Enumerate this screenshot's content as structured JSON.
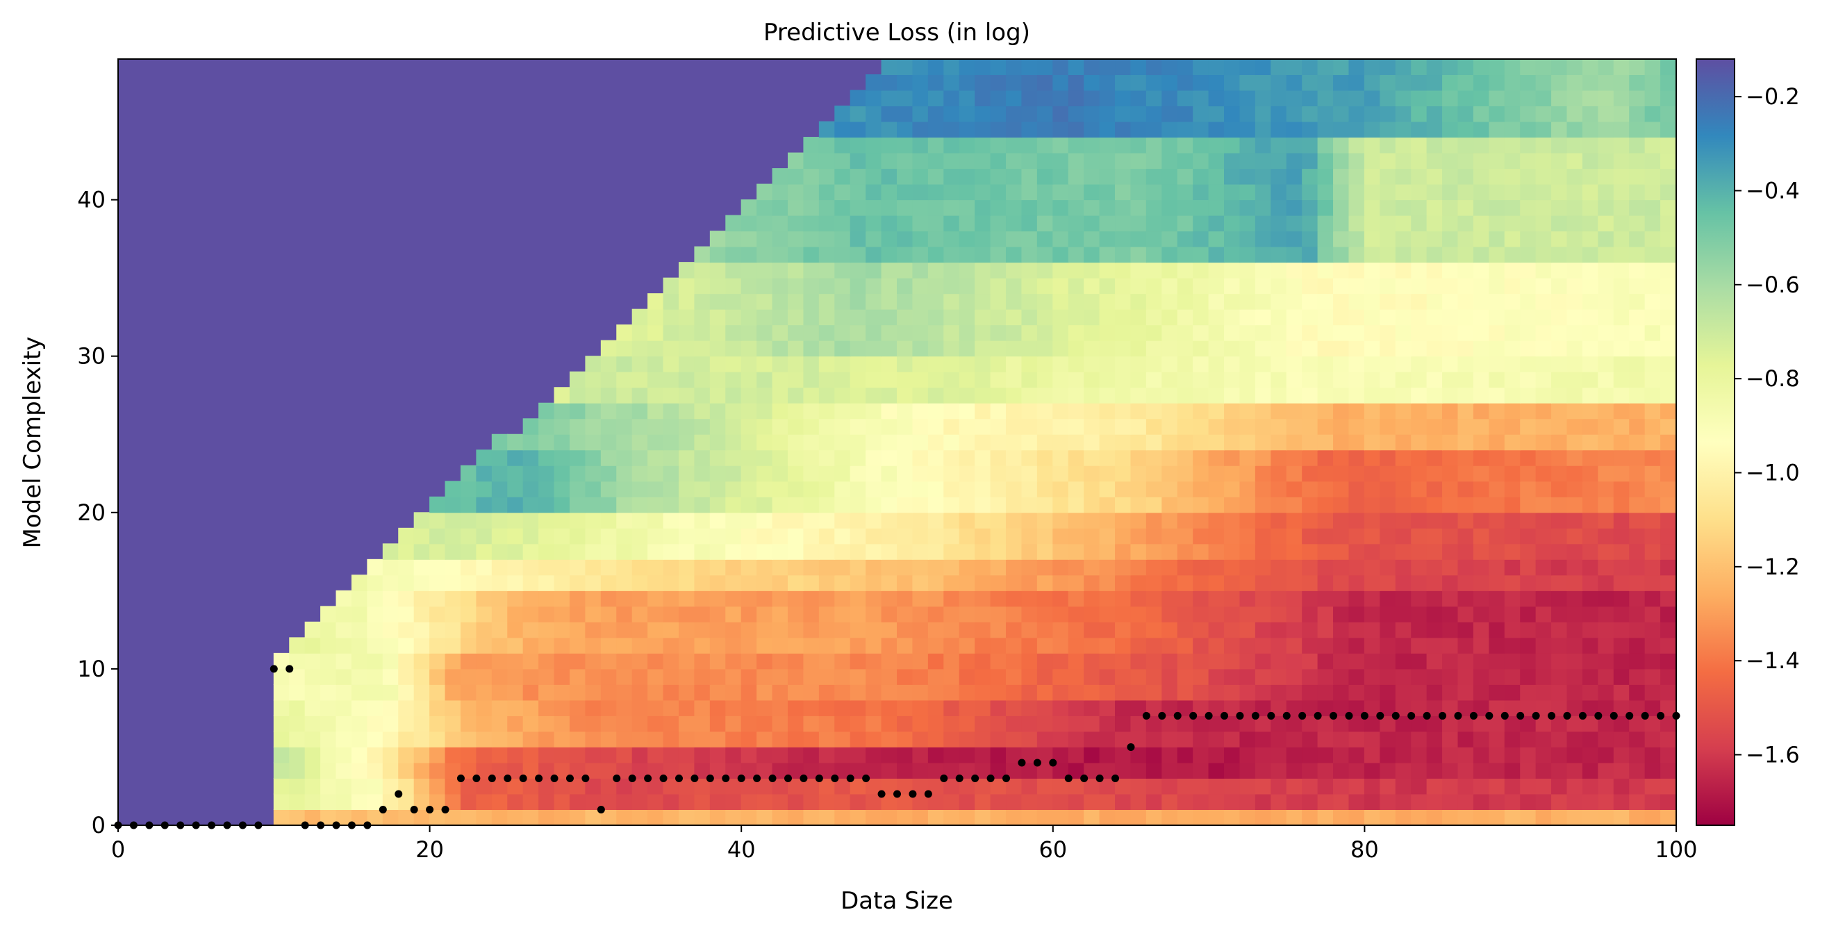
{
  "chart_data": {
    "type": "heatmap",
    "title": "Predictive Loss (in log)",
    "xlabel": "Data Size",
    "ylabel": "Model Complexity",
    "xlim": [
      0,
      100
    ],
    "ylim": [
      0,
      49
    ],
    "x_ticks": [
      0,
      20,
      40,
      60,
      80,
      100
    ],
    "y_ticks": [
      0,
      10,
      20,
      30,
      40
    ],
    "x_tick_labels": [
      "0",
      "20",
      "40",
      "60",
      "80",
      "100"
    ],
    "y_tick_labels": [
      "0",
      "10",
      "20",
      "30",
      "40"
    ],
    "colorbar": {
      "range": [
        -1.75,
        -0.12
      ],
      "ticks": [
        -0.2,
        -0.4,
        -0.6,
        -0.8,
        -1.0,
        -1.2,
        -1.4,
        -1.6
      ],
      "tick_labels": [
        "−0.2",
        "−0.4",
        "−0.6",
        "−0.8",
        "−1.0",
        "−1.2",
        "−1.4",
        "−1.6"
      ],
      "colormap": "Spectral",
      "stops": [
        "#9e0142",
        "#d53e4f",
        "#f46d43",
        "#fdae61",
        "#fee08b",
        "#ffffbf",
        "#e6f598",
        "#abdda4",
        "#66c2a5",
        "#3288bd",
        "#5e4fa2"
      ]
    },
    "masked_color": "#5e4fa2",
    "valid_region_note": "cells with complexity > data size shown in masked color",
    "heatmap_bands": [
      {
        "y_from": 0,
        "y_to": 1,
        "by_x": [
          [
            0,
            -1.2
          ],
          [
            40,
            -1.25
          ],
          [
            100,
            -1.25
          ]
        ]
      },
      {
        "y_from": 1,
        "y_to": 3,
        "by_x": [
          [
            10,
            -0.75
          ],
          [
            17,
            -0.95
          ],
          [
            22,
            -1.45
          ],
          [
            32,
            -1.55
          ],
          [
            48,
            -1.5
          ],
          [
            80,
            -1.6
          ],
          [
            100,
            -1.6
          ]
        ]
      },
      {
        "y_from": 3,
        "y_to": 5,
        "by_x": [
          [
            10,
            -0.65
          ],
          [
            17,
            -1.0
          ],
          [
            22,
            -1.45
          ],
          [
            32,
            -1.55
          ],
          [
            46,
            -1.65
          ],
          [
            66,
            -1.7
          ],
          [
            80,
            -1.65
          ],
          [
            100,
            -1.65
          ]
        ]
      },
      {
        "y_from": 5,
        "y_to": 8,
        "by_x": [
          [
            10,
            -0.8
          ],
          [
            17,
            -0.95
          ],
          [
            22,
            -1.2
          ],
          [
            30,
            -1.35
          ],
          [
            48,
            -1.4
          ],
          [
            66,
            -1.65
          ],
          [
            100,
            -1.65
          ]
        ]
      },
      {
        "y_from": 8,
        "y_to": 11,
        "by_x": [
          [
            10,
            -0.9
          ],
          [
            17,
            -0.85
          ],
          [
            22,
            -1.3
          ],
          [
            33,
            -1.35
          ],
          [
            48,
            -1.35
          ],
          [
            66,
            -1.5
          ],
          [
            80,
            -1.65
          ],
          [
            100,
            -1.65
          ]
        ]
      },
      {
        "y_from": 11,
        "y_to": 15,
        "by_x": [
          [
            10,
            -0.75
          ],
          [
            17,
            -0.9
          ],
          [
            26,
            -1.25
          ],
          [
            33,
            -1.3
          ],
          [
            48,
            -1.3
          ],
          [
            66,
            -1.45
          ],
          [
            80,
            -1.65
          ],
          [
            100,
            -1.65
          ]
        ]
      },
      {
        "y_from": 15,
        "y_to": 17,
        "by_x": [
          [
            10,
            -0.7
          ],
          [
            17,
            -0.9
          ],
          [
            26,
            -1.0
          ],
          [
            33,
            -1.1
          ],
          [
            52,
            -1.2
          ],
          [
            78,
            -1.55
          ],
          [
            100,
            -1.6
          ]
        ]
      },
      {
        "y_from": 17,
        "y_to": 20,
        "by_x": [
          [
            10,
            -0.7
          ],
          [
            26,
            -0.75
          ],
          [
            33,
            -0.85
          ],
          [
            52,
            -1.05
          ],
          [
            78,
            -1.5
          ],
          [
            100,
            -1.55
          ]
        ]
      },
      {
        "y_from": 20,
        "y_to": 24,
        "by_x": [
          [
            10,
            -0.55
          ],
          [
            26,
            -0.4
          ],
          [
            33,
            -0.6
          ],
          [
            52,
            -0.95
          ],
          [
            66,
            -1.15
          ],
          [
            78,
            -1.45
          ],
          [
            100,
            -1.35
          ]
        ]
      },
      {
        "y_from": 24,
        "y_to": 27,
        "by_x": [
          [
            10,
            -0.55
          ],
          [
            26,
            -0.5
          ],
          [
            33,
            -0.6
          ],
          [
            52,
            -0.95
          ],
          [
            66,
            -1.05
          ],
          [
            78,
            -1.25
          ],
          [
            100,
            -1.25
          ]
        ]
      },
      {
        "y_from": 27,
        "y_to": 30,
        "by_x": [
          [
            10,
            -0.75
          ],
          [
            26,
            -0.75
          ],
          [
            33,
            -0.7
          ],
          [
            52,
            -0.75
          ],
          [
            66,
            -0.85
          ],
          [
            78,
            -0.9
          ],
          [
            100,
            -0.85
          ]
        ]
      },
      {
        "y_from": 30,
        "y_to": 36,
        "by_x": [
          [
            10,
            -0.75
          ],
          [
            33,
            -0.75
          ],
          [
            48,
            -0.6
          ],
          [
            66,
            -0.8
          ],
          [
            78,
            -0.95
          ],
          [
            100,
            -0.9
          ]
        ]
      },
      {
        "y_from": 36,
        "y_to": 44,
        "by_x": [
          [
            10,
            -0.7
          ],
          [
            40,
            -0.55
          ],
          [
            48,
            -0.45
          ],
          [
            66,
            -0.5
          ],
          [
            76,
            -0.35
          ],
          [
            80,
            -0.7
          ],
          [
            100,
            -0.7
          ]
        ]
      },
      {
        "y_from": 44,
        "y_to": 49,
        "by_x": [
          [
            10,
            -0.7
          ],
          [
            48,
            -0.3
          ],
          [
            60,
            -0.25
          ],
          [
            80,
            -0.35
          ],
          [
            96,
            -0.6
          ],
          [
            100,
            -0.45
          ]
        ]
      }
    ],
    "points": [
      [
        0,
        0
      ],
      [
        1,
        0
      ],
      [
        2,
        0
      ],
      [
        3,
        0
      ],
      [
        4,
        0
      ],
      [
        5,
        0
      ],
      [
        6,
        0
      ],
      [
        7,
        0
      ],
      [
        8,
        0
      ],
      [
        9,
        0
      ],
      [
        10,
        10
      ],
      [
        11,
        10
      ],
      [
        12,
        0
      ],
      [
        13,
        0
      ],
      [
        14,
        0
      ],
      [
        15,
        0
      ],
      [
        16,
        0
      ],
      [
        17,
        1
      ],
      [
        18,
        2
      ],
      [
        19,
        1
      ],
      [
        20,
        1
      ],
      [
        21,
        1
      ],
      [
        22,
        3
      ],
      [
        23,
        3
      ],
      [
        24,
        3
      ],
      [
        25,
        3
      ],
      [
        26,
        3
      ],
      [
        27,
        3
      ],
      [
        28,
        3
      ],
      [
        29,
        3
      ],
      [
        30,
        3
      ],
      [
        31,
        1
      ],
      [
        32,
        3
      ],
      [
        33,
        3
      ],
      [
        34,
        3
      ],
      [
        35,
        3
      ],
      [
        36,
        3
      ],
      [
        37,
        3
      ],
      [
        38,
        3
      ],
      [
        39,
        3
      ],
      [
        40,
        3
      ],
      [
        41,
        3
      ],
      [
        42,
        3
      ],
      [
        43,
        3
      ],
      [
        44,
        3
      ],
      [
        45,
        3
      ],
      [
        46,
        3
      ],
      [
        47,
        3
      ],
      [
        48,
        3
      ],
      [
        49,
        2
      ],
      [
        50,
        2
      ],
      [
        51,
        2
      ],
      [
        52,
        2
      ],
      [
        53,
        3
      ],
      [
        54,
        3
      ],
      [
        55,
        3
      ],
      [
        56,
        3
      ],
      [
        57,
        3
      ],
      [
        58,
        4
      ],
      [
        59,
        4
      ],
      [
        60,
        4
      ],
      [
        61,
        3
      ],
      [
        62,
        3
      ],
      [
        63,
        3
      ],
      [
        64,
        3
      ],
      [
        65,
        5
      ],
      [
        66,
        7
      ],
      [
        67,
        7
      ],
      [
        68,
        7
      ],
      [
        69,
        7
      ],
      [
        70,
        7
      ],
      [
        71,
        7
      ],
      [
        72,
        7
      ],
      [
        73,
        7
      ],
      [
        74,
        7
      ],
      [
        75,
        7
      ],
      [
        76,
        7
      ],
      [
        77,
        7
      ],
      [
        78,
        7
      ],
      [
        79,
        7
      ],
      [
        80,
        7
      ],
      [
        81,
        7
      ],
      [
        82,
        7
      ],
      [
        83,
        7
      ],
      [
        84,
        7
      ],
      [
        85,
        7
      ],
      [
        86,
        7
      ],
      [
        87,
        7
      ],
      [
        88,
        7
      ],
      [
        89,
        7
      ],
      [
        90,
        7
      ],
      [
        91,
        7
      ],
      [
        92,
        7
      ],
      [
        93,
        7
      ],
      [
        94,
        7
      ],
      [
        95,
        7
      ],
      [
        96,
        7
      ],
      [
        97,
        7
      ],
      [
        98,
        7
      ],
      [
        99,
        7
      ],
      [
        100,
        7
      ]
    ]
  }
}
